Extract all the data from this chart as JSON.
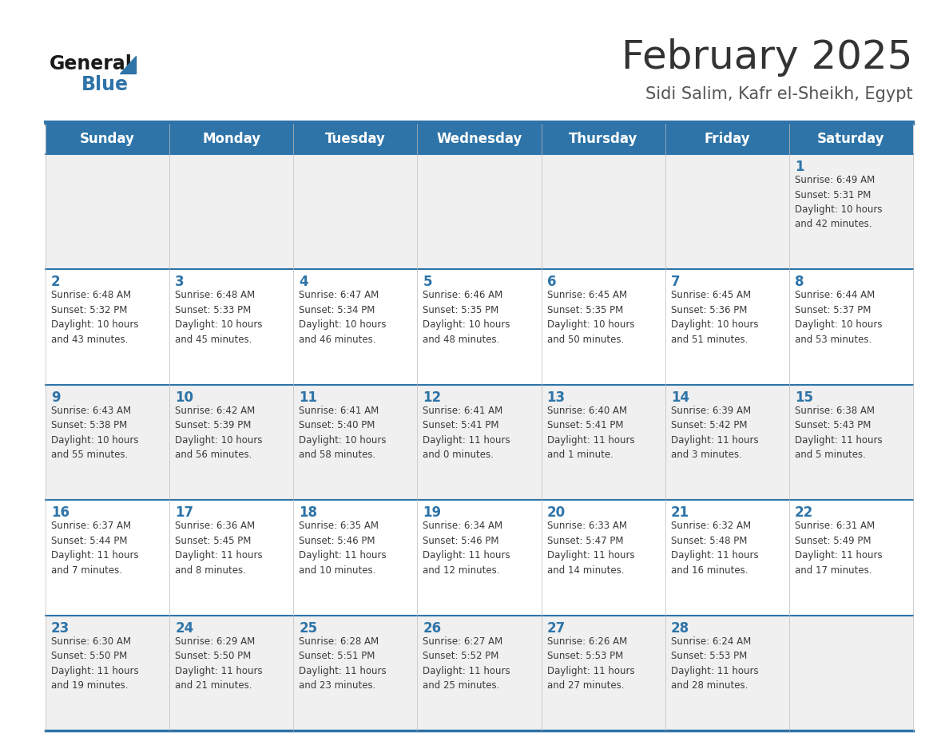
{
  "title": "February 2025",
  "subtitle": "Sidi Salim, Kafr el-Sheikh, Egypt",
  "days_of_week": [
    "Sunday",
    "Monday",
    "Tuesday",
    "Wednesday",
    "Thursday",
    "Friday",
    "Saturday"
  ],
  "header_bg": "#2E74A8",
  "header_text": "#FFFFFF",
  "row0_bg": "#F0F0F0",
  "row1_bg": "#FFFFFF",
  "border_color": "#2E74A8",
  "day_num_color": "#2E74A8",
  "info_text_color": "#3a3a3a",
  "title_color": "#333333",
  "subtitle_color": "#555555",
  "logo_general_color": "#1a1a1a",
  "logo_blue_color": "#2E74A8",
  "logo_triangle_color": "#2E74A8",
  "calendar_data": [
    [
      {
        "day": null,
        "info": ""
      },
      {
        "day": null,
        "info": ""
      },
      {
        "day": null,
        "info": ""
      },
      {
        "day": null,
        "info": ""
      },
      {
        "day": null,
        "info": ""
      },
      {
        "day": null,
        "info": ""
      },
      {
        "day": 1,
        "info": "Sunrise: 6:49 AM\nSunset: 5:31 PM\nDaylight: 10 hours\nand 42 minutes."
      }
    ],
    [
      {
        "day": 2,
        "info": "Sunrise: 6:48 AM\nSunset: 5:32 PM\nDaylight: 10 hours\nand 43 minutes."
      },
      {
        "day": 3,
        "info": "Sunrise: 6:48 AM\nSunset: 5:33 PM\nDaylight: 10 hours\nand 45 minutes."
      },
      {
        "day": 4,
        "info": "Sunrise: 6:47 AM\nSunset: 5:34 PM\nDaylight: 10 hours\nand 46 minutes."
      },
      {
        "day": 5,
        "info": "Sunrise: 6:46 AM\nSunset: 5:35 PM\nDaylight: 10 hours\nand 48 minutes."
      },
      {
        "day": 6,
        "info": "Sunrise: 6:45 AM\nSunset: 5:35 PM\nDaylight: 10 hours\nand 50 minutes."
      },
      {
        "day": 7,
        "info": "Sunrise: 6:45 AM\nSunset: 5:36 PM\nDaylight: 10 hours\nand 51 minutes."
      },
      {
        "day": 8,
        "info": "Sunrise: 6:44 AM\nSunset: 5:37 PM\nDaylight: 10 hours\nand 53 minutes."
      }
    ],
    [
      {
        "day": 9,
        "info": "Sunrise: 6:43 AM\nSunset: 5:38 PM\nDaylight: 10 hours\nand 55 minutes."
      },
      {
        "day": 10,
        "info": "Sunrise: 6:42 AM\nSunset: 5:39 PM\nDaylight: 10 hours\nand 56 minutes."
      },
      {
        "day": 11,
        "info": "Sunrise: 6:41 AM\nSunset: 5:40 PM\nDaylight: 10 hours\nand 58 minutes."
      },
      {
        "day": 12,
        "info": "Sunrise: 6:41 AM\nSunset: 5:41 PM\nDaylight: 11 hours\nand 0 minutes."
      },
      {
        "day": 13,
        "info": "Sunrise: 6:40 AM\nSunset: 5:41 PM\nDaylight: 11 hours\nand 1 minute."
      },
      {
        "day": 14,
        "info": "Sunrise: 6:39 AM\nSunset: 5:42 PM\nDaylight: 11 hours\nand 3 minutes."
      },
      {
        "day": 15,
        "info": "Sunrise: 6:38 AM\nSunset: 5:43 PM\nDaylight: 11 hours\nand 5 minutes."
      }
    ],
    [
      {
        "day": 16,
        "info": "Sunrise: 6:37 AM\nSunset: 5:44 PM\nDaylight: 11 hours\nand 7 minutes."
      },
      {
        "day": 17,
        "info": "Sunrise: 6:36 AM\nSunset: 5:45 PM\nDaylight: 11 hours\nand 8 minutes."
      },
      {
        "day": 18,
        "info": "Sunrise: 6:35 AM\nSunset: 5:46 PM\nDaylight: 11 hours\nand 10 minutes."
      },
      {
        "day": 19,
        "info": "Sunrise: 6:34 AM\nSunset: 5:46 PM\nDaylight: 11 hours\nand 12 minutes."
      },
      {
        "day": 20,
        "info": "Sunrise: 6:33 AM\nSunset: 5:47 PM\nDaylight: 11 hours\nand 14 minutes."
      },
      {
        "day": 21,
        "info": "Sunrise: 6:32 AM\nSunset: 5:48 PM\nDaylight: 11 hours\nand 16 minutes."
      },
      {
        "day": 22,
        "info": "Sunrise: 6:31 AM\nSunset: 5:49 PM\nDaylight: 11 hours\nand 17 minutes."
      }
    ],
    [
      {
        "day": 23,
        "info": "Sunrise: 6:30 AM\nSunset: 5:50 PM\nDaylight: 11 hours\nand 19 minutes."
      },
      {
        "day": 24,
        "info": "Sunrise: 6:29 AM\nSunset: 5:50 PM\nDaylight: 11 hours\nand 21 minutes."
      },
      {
        "day": 25,
        "info": "Sunrise: 6:28 AM\nSunset: 5:51 PM\nDaylight: 11 hours\nand 23 minutes."
      },
      {
        "day": 26,
        "info": "Sunrise: 6:27 AM\nSunset: 5:52 PM\nDaylight: 11 hours\nand 25 minutes."
      },
      {
        "day": 27,
        "info": "Sunrise: 6:26 AM\nSunset: 5:53 PM\nDaylight: 11 hours\nand 27 minutes."
      },
      {
        "day": 28,
        "info": "Sunrise: 6:24 AM\nSunset: 5:53 PM\nDaylight: 11 hours\nand 28 minutes."
      },
      {
        "day": null,
        "info": ""
      }
    ]
  ]
}
